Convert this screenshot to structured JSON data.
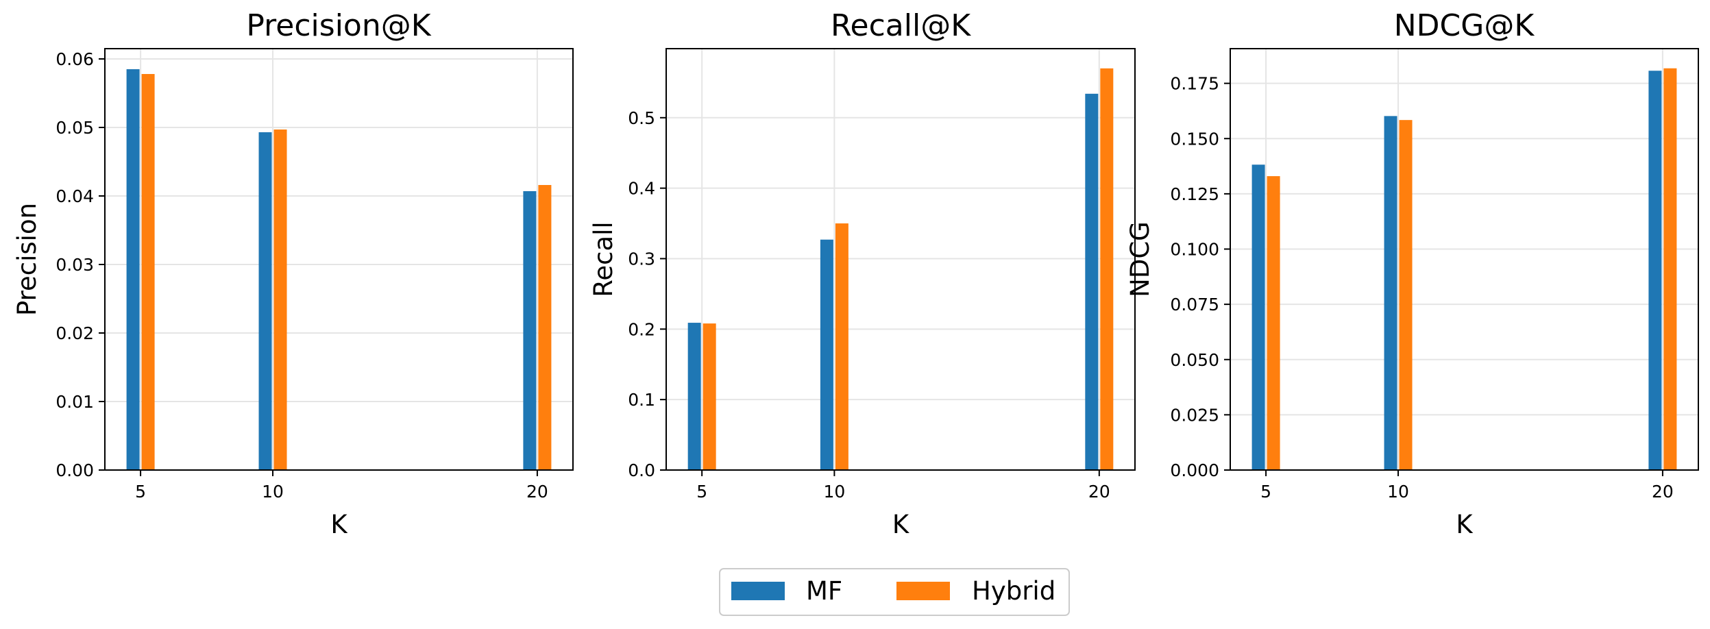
{
  "chart_data": [
    {
      "type": "bar",
      "title": "Precision@K",
      "xlabel": "K",
      "ylabel": "Precision",
      "x": [
        5,
        10,
        20
      ],
      "series": [
        {
          "name": "MF",
          "values": [
            0.0585,
            0.0493,
            0.0407
          ]
        },
        {
          "name": "Hybrid",
          "values": [
            0.0578,
            0.0497,
            0.0416
          ]
        }
      ],
      "ylim": [
        0,
        0.0615
      ],
      "yticks": [
        0.0,
        0.01,
        0.02,
        0.03,
        0.04,
        0.05,
        0.06
      ],
      "ytick_labels": [
        "0.00",
        "0.01",
        "0.02",
        "0.03",
        "0.04",
        "0.05",
        "0.06"
      ],
      "grid": true
    },
    {
      "type": "bar",
      "title": "Recall@K",
      "xlabel": "K",
      "ylabel": "Recall",
      "x": [
        5,
        10,
        20
      ],
      "series": [
        {
          "name": "MF",
          "values": [
            0.209,
            0.327,
            0.534
          ]
        },
        {
          "name": "Hybrid",
          "values": [
            0.208,
            0.35,
            0.57
          ]
        }
      ],
      "ylim": [
        0,
        0.598
      ],
      "yticks": [
        0.0,
        0.1,
        0.2,
        0.3,
        0.4,
        0.5
      ],
      "ytick_labels": [
        "0.0",
        "0.1",
        "0.2",
        "0.3",
        "0.4",
        "0.5"
      ],
      "grid": true
    },
    {
      "type": "bar",
      "title": "NDCG@K",
      "xlabel": "K",
      "ylabel": "NDCG",
      "x": [
        5,
        10,
        20
      ],
      "series": [
        {
          "name": "MF",
          "values": [
            0.1382,
            0.1602,
            0.1807
          ]
        },
        {
          "name": "Hybrid",
          "values": [
            0.133,
            0.1584,
            0.1818
          ]
        }
      ],
      "ylim": [
        0,
        0.1907
      ],
      "yticks": [
        0.0,
        0.025,
        0.05,
        0.075,
        0.1,
        0.125,
        0.15,
        0.175
      ],
      "ytick_labels": [
        "0.000",
        "0.025",
        "0.050",
        "0.075",
        "0.100",
        "0.125",
        "0.150",
        "0.175"
      ],
      "grid": true
    }
  ],
  "legend": {
    "placement": "bottom-center",
    "entries": [
      {
        "label": "MF",
        "color": "#1f77b4"
      },
      {
        "label": "Hybrid",
        "color": "#ff7f0e"
      }
    ]
  },
  "colors": {
    "MF": "#1f77b4",
    "Hybrid": "#ff7f0e"
  }
}
